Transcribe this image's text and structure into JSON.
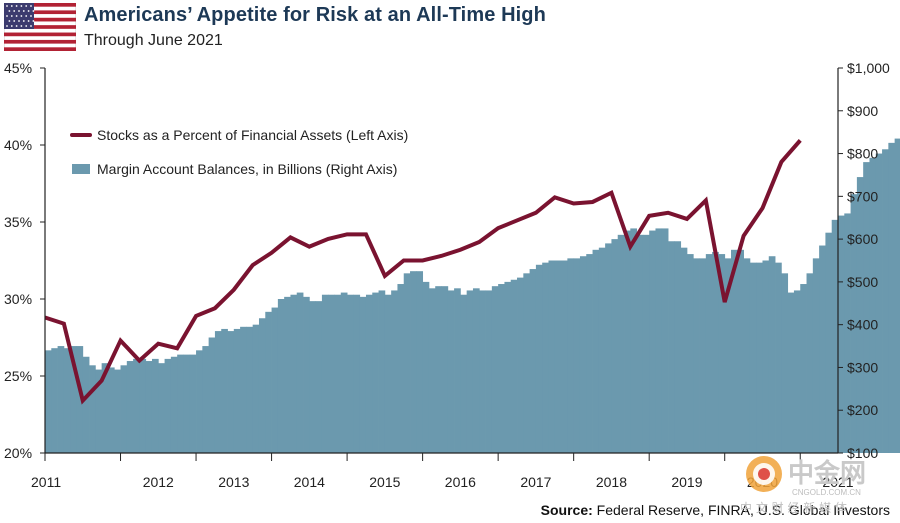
{
  "header": {
    "title": "Americans’ Appetite for Risk at an All-Time High",
    "subtitle": "Through June 2021"
  },
  "source": {
    "label": "Source:",
    "text": "Federal Reserve, FINRA, U.S. Global Investors"
  },
  "watermark": {
    "name": "中金网",
    "domain": "CNGOLD.COM.CN",
    "tagline": "中 文 财 经 新 媒 体"
  },
  "colors": {
    "bars": "#6b99ae",
    "line": "#7a1330",
    "axis": "#222222",
    "flag_red": "#b22234",
    "flag_blue": "#3c3b6e"
  },
  "icons": [
    "us-flag-icon",
    "cngold-logo-icon"
  ],
  "chart_data": {
    "type": "bar",
    "title": "Americans’ Appetite for Risk at an All-Time High",
    "x_range": [
      2011,
      2021.5
    ],
    "x_ticks": [
      "2011",
      "2012",
      "2013",
      "2014",
      "2015",
      "2016",
      "2017",
      "2018",
      "2019",
      "2020",
      "2021"
    ],
    "left_axis": {
      "range": [
        20,
        45
      ],
      "ticks": [
        20,
        25,
        30,
        35,
        40,
        45
      ],
      "format": "percent"
    },
    "right_axis": {
      "range": [
        100,
        1000
      ],
      "ticks": [
        100,
        200,
        300,
        400,
        500,
        600,
        700,
        800,
        900,
        1000
      ],
      "format": "dollars"
    },
    "grid": false,
    "legend_position": "top-left",
    "series": [
      {
        "name": "Margin Account Balances, in Billions (Right Axis)",
        "type": "bar",
        "axis": "right",
        "x_start": 2011,
        "x_step_months": 1,
        "values": [
          340,
          345,
          350,
          345,
          350,
          350,
          325,
          305,
          295,
          310,
          300,
          295,
          305,
          315,
          320,
          320,
          315,
          320,
          310,
          320,
          325,
          330,
          330,
          330,
          340,
          350,
          370,
          385,
          390,
          385,
          390,
          395,
          395,
          400,
          415,
          430,
          440,
          460,
          465,
          470,
          475,
          465,
          455,
          455,
          470,
          470,
          470,
          475,
          470,
          470,
          465,
          470,
          475,
          480,
          470,
          480,
          495,
          520,
          525,
          525,
          500,
          485,
          490,
          490,
          480,
          485,
          470,
          480,
          485,
          480,
          480,
          490,
          495,
          500,
          505,
          510,
          520,
          530,
          540,
          545,
          550,
          550,
          550,
          555,
          555,
          560,
          565,
          575,
          580,
          590,
          600,
          610,
          620,
          625,
          610,
          610,
          620,
          625,
          625,
          595,
          595,
          580,
          565,
          555,
          555,
          565,
          570,
          565,
          555,
          575,
          575,
          555,
          545,
          545,
          550,
          560,
          545,
          520,
          475,
          480,
          495,
          520,
          555,
          585,
          615,
          645,
          655,
          660,
          705,
          745,
          780,
          790,
          800,
          810,
          825,
          835,
          850,
          860,
          870,
          880,
          890,
          900
        ]
      },
      {
        "name": "Stocks as a Percent of Financial Assets (Left Axis)",
        "type": "line",
        "axis": "left",
        "points": [
          [
            2011.0,
            28.8
          ],
          [
            2011.25,
            28.4
          ],
          [
            2011.5,
            23.4
          ],
          [
            2011.75,
            24.7
          ],
          [
            2012.0,
            27.3
          ],
          [
            2012.25,
            26.0
          ],
          [
            2012.5,
            27.1
          ],
          [
            2012.75,
            26.8
          ],
          [
            2013.0,
            28.9
          ],
          [
            2013.25,
            29.4
          ],
          [
            2013.5,
            30.6
          ],
          [
            2013.75,
            32.2
          ],
          [
            2014.0,
            33.0
          ],
          [
            2014.25,
            34.0
          ],
          [
            2014.5,
            33.4
          ],
          [
            2014.75,
            33.9
          ],
          [
            2015.0,
            34.2
          ],
          [
            2015.25,
            34.2
          ],
          [
            2015.5,
            31.5
          ],
          [
            2015.75,
            32.5
          ],
          [
            2016.0,
            32.5
          ],
          [
            2016.25,
            32.8
          ],
          [
            2016.5,
            33.2
          ],
          [
            2016.75,
            33.7
          ],
          [
            2017.0,
            34.6
          ],
          [
            2017.25,
            35.1
          ],
          [
            2017.5,
            35.6
          ],
          [
            2017.75,
            36.6
          ],
          [
            2018.0,
            36.2
          ],
          [
            2018.25,
            36.3
          ],
          [
            2018.5,
            36.9
          ],
          [
            2018.75,
            33.4
          ],
          [
            2019.0,
            35.4
          ],
          [
            2019.25,
            35.6
          ],
          [
            2019.5,
            35.2
          ],
          [
            2019.75,
            36.4
          ],
          [
            2020.0,
            29.8
          ],
          [
            2020.25,
            34.1
          ],
          [
            2020.5,
            35.9
          ],
          [
            2020.75,
            38.9
          ],
          [
            2021.0,
            40.3
          ]
        ]
      }
    ]
  }
}
